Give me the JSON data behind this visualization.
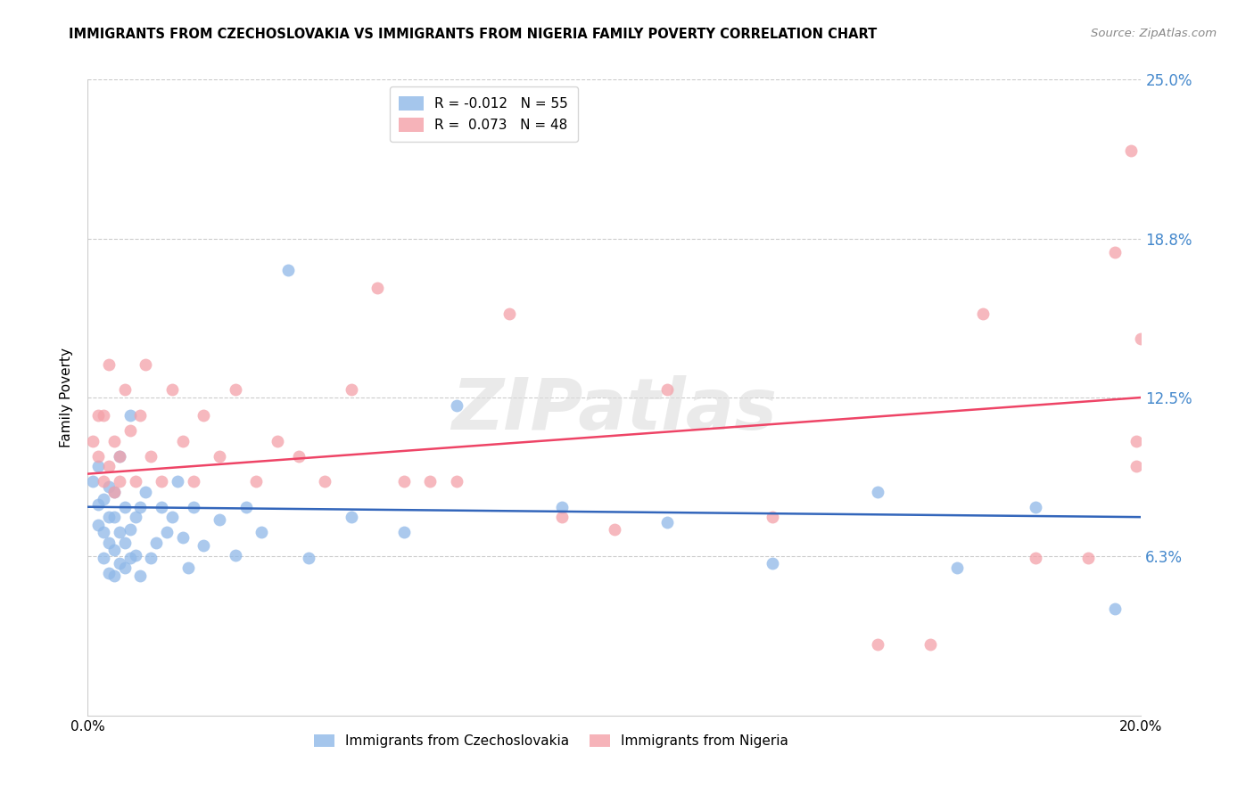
{
  "title": "IMMIGRANTS FROM CZECHOSLOVAKIA VS IMMIGRANTS FROM NIGERIA FAMILY POVERTY CORRELATION CHART",
  "source": "Source: ZipAtlas.com",
  "ylabel": "Family Poverty",
  "xlim": [
    0.0,
    0.2
  ],
  "ylim": [
    0.0,
    0.25
  ],
  "yticks": [
    0.0625,
    0.125,
    0.1875,
    0.25
  ],
  "ytick_labels": [
    "6.3%",
    "12.5%",
    "18.8%",
    "25.0%"
  ],
  "xticks": [
    0.0,
    0.05,
    0.1,
    0.15,
    0.2
  ],
  "xtick_labels": [
    "0.0%",
    "",
    "",
    "",
    "20.0%"
  ],
  "blue_R": "-0.012",
  "blue_N": "55",
  "pink_R": "0.073",
  "pink_N": "48",
  "blue_color": "#8FB8E8",
  "pink_color": "#F4A0A8",
  "trend_blue": "#3366BB",
  "trend_pink": "#EE4466",
  "right_label_color": "#4488CC",
  "background_color": "#FFFFFF",
  "watermark": "ZIPatlas",
  "legend_label_blue": "Immigrants from Czechoslovakia",
  "legend_label_pink": "Immigrants from Nigeria",
  "blue_points_x": [
    0.001,
    0.002,
    0.002,
    0.002,
    0.003,
    0.003,
    0.003,
    0.004,
    0.004,
    0.004,
    0.004,
    0.005,
    0.005,
    0.005,
    0.005,
    0.006,
    0.006,
    0.006,
    0.007,
    0.007,
    0.007,
    0.008,
    0.008,
    0.008,
    0.009,
    0.009,
    0.01,
    0.01,
    0.011,
    0.012,
    0.013,
    0.014,
    0.015,
    0.016,
    0.017,
    0.018,
    0.019,
    0.02,
    0.022,
    0.025,
    0.028,
    0.03,
    0.033,
    0.038,
    0.042,
    0.05,
    0.06,
    0.07,
    0.09,
    0.11,
    0.13,
    0.15,
    0.165,
    0.18,
    0.195
  ],
  "blue_points_y": [
    0.092,
    0.075,
    0.083,
    0.098,
    0.062,
    0.072,
    0.085,
    0.056,
    0.068,
    0.078,
    0.09,
    0.055,
    0.065,
    0.078,
    0.088,
    0.06,
    0.072,
    0.102,
    0.058,
    0.068,
    0.082,
    0.062,
    0.073,
    0.118,
    0.063,
    0.078,
    0.055,
    0.082,
    0.088,
    0.062,
    0.068,
    0.082,
    0.072,
    0.078,
    0.092,
    0.07,
    0.058,
    0.082,
    0.067,
    0.077,
    0.063,
    0.082,
    0.072,
    0.175,
    0.062,
    0.078,
    0.072,
    0.122,
    0.082,
    0.076,
    0.06,
    0.088,
    0.058,
    0.082,
    0.042
  ],
  "pink_points_x": [
    0.001,
    0.002,
    0.002,
    0.003,
    0.003,
    0.004,
    0.004,
    0.005,
    0.005,
    0.006,
    0.006,
    0.007,
    0.008,
    0.009,
    0.01,
    0.011,
    0.012,
    0.014,
    0.016,
    0.018,
    0.02,
    0.022,
    0.025,
    0.028,
    0.032,
    0.036,
    0.04,
    0.045,
    0.05,
    0.055,
    0.06,
    0.065,
    0.07,
    0.08,
    0.09,
    0.1,
    0.11,
    0.13,
    0.15,
    0.16,
    0.17,
    0.18,
    0.19,
    0.195,
    0.198,
    0.199,
    0.199,
    0.2
  ],
  "pink_points_y": [
    0.108,
    0.102,
    0.118,
    0.092,
    0.118,
    0.098,
    0.138,
    0.088,
    0.108,
    0.092,
    0.102,
    0.128,
    0.112,
    0.092,
    0.118,
    0.138,
    0.102,
    0.092,
    0.128,
    0.108,
    0.092,
    0.118,
    0.102,
    0.128,
    0.092,
    0.108,
    0.102,
    0.092,
    0.128,
    0.168,
    0.092,
    0.092,
    0.092,
    0.158,
    0.078,
    0.073,
    0.128,
    0.078,
    0.028,
    0.028,
    0.158,
    0.062,
    0.062,
    0.182,
    0.222,
    0.098,
    0.108,
    0.148
  ],
  "blue_trend_x": [
    0.0,
    0.2
  ],
  "blue_trend_y": [
    0.082,
    0.078
  ],
  "pink_trend_x": [
    0.0,
    0.2
  ],
  "pink_trend_y": [
    0.095,
    0.125
  ]
}
